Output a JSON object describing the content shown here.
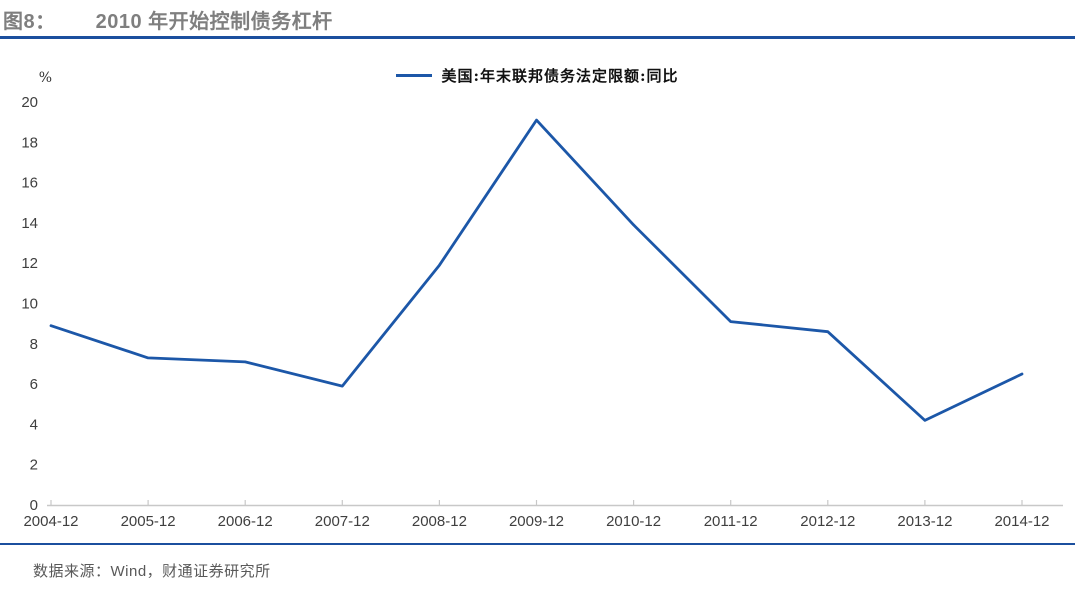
{
  "header": {
    "figure_label": "图8：",
    "title": "2010 年开始控制债务杠杆"
  },
  "legend": {
    "label": "美国:年末联邦债务法定限额:同比"
  },
  "chart_data": {
    "type": "line",
    "title": "2010 年开始控制债务杠杆",
    "categories": [
      "2004-12",
      "2005-12",
      "2006-12",
      "2007-12",
      "2008-12",
      "2009-12",
      "2010-12",
      "2011-12",
      "2012-12",
      "2013-12",
      "2014-12"
    ],
    "series": [
      {
        "name": "美国:年末联邦债务法定限额:同比",
        "values": [
          8.9,
          7.3,
          7.1,
          5.9,
          11.9,
          19.1,
          13.9,
          9.1,
          8.6,
          4.2,
          6.5
        ]
      }
    ],
    "ylabel_unit": "%",
    "ylim": [
      0,
      20
    ],
    "ytick_step": 2,
    "grid": false,
    "legend_position": "top-center",
    "line_color": "#1c57a8",
    "axis_color": "#c8c8c8"
  },
  "footer": {
    "source": "数据来源：Wind，财通证券研究所"
  },
  "colors": {
    "accent_rule": "#1b4f9e",
    "line": "#1c57a8",
    "title_text": "#7f7f7f",
    "tick_text": "#3f3f3f",
    "footer_text": "#595959",
    "axis": "#c8c8c8"
  }
}
